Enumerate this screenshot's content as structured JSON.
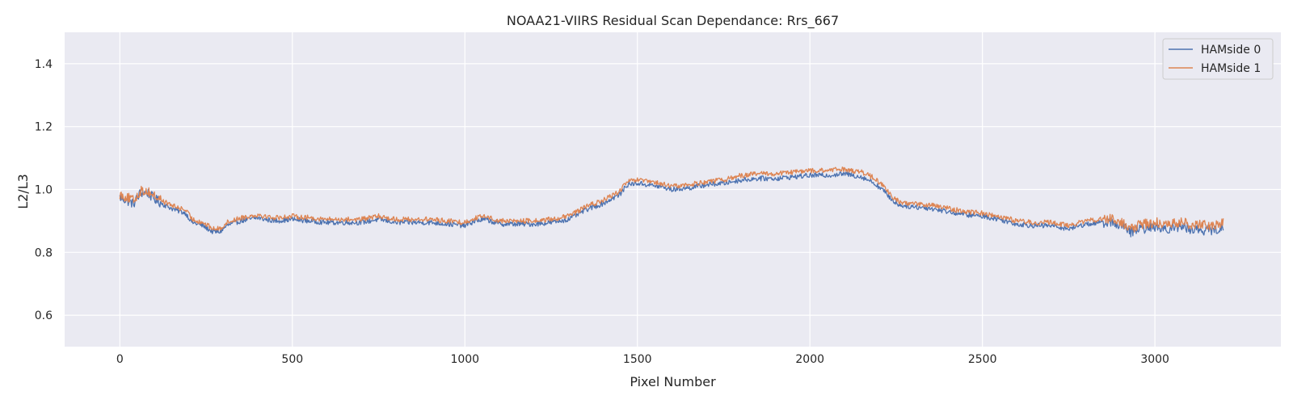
{
  "chart_data": {
    "type": "line",
    "title": "NOAA21-VIIRS Residual Scan Dependance: Rrs_667",
    "xlabel": "Pixel Number",
    "ylabel": "L2/L3",
    "xlim": [
      -160,
      3365
    ],
    "ylim": [
      0.5,
      1.5
    ],
    "xticks": [
      0,
      500,
      1000,
      1500,
      2000,
      2500,
      3000
    ],
    "yticks": [
      0.6,
      0.8,
      1.0,
      1.2,
      1.4
    ],
    "xtick_labels": [
      "0",
      "500",
      "1000",
      "1500",
      "2000",
      "2500",
      "3000"
    ],
    "ytick_labels": [
      "0.6",
      "0.8",
      "1.0",
      "1.2",
      "1.4"
    ],
    "grid": true,
    "legend_position": "top-right",
    "x_range": [
      0,
      3199
    ],
    "series": [
      {
        "name": "HAMside 0",
        "color": "#4c72b0",
        "x": [
          0,
          20,
          40,
          60,
          80,
          100,
          130,
          160,
          190,
          210,
          240,
          270,
          290,
          310,
          350,
          400,
          420,
          450,
          500,
          550,
          600,
          650,
          700,
          750,
          800,
          850,
          900,
          950,
          1000,
          1030,
          1060,
          1100,
          1150,
          1200,
          1250,
          1300,
          1350,
          1400,
          1450,
          1470,
          1500,
          1530,
          1560,
          1600,
          1650,
          1700,
          1750,
          1800,
          1850,
          1900,
          1950,
          2000,
          2050,
          2100,
          2150,
          2180,
          2210,
          2240,
          2260,
          2300,
          2350,
          2400,
          2450,
          2500,
          2550,
          2600,
          2650,
          2700,
          2750,
          2800,
          2850,
          2880,
          2900,
          2930,
          2960,
          3000,
          3050,
          3080,
          3100,
          3150,
          3199
        ],
        "values": [
          0.975,
          0.965,
          0.955,
          0.99,
          0.99,
          0.97,
          0.95,
          0.935,
          0.925,
          0.895,
          0.885,
          0.865,
          0.865,
          0.885,
          0.9,
          0.91,
          0.905,
          0.9,
          0.905,
          0.9,
          0.895,
          0.895,
          0.895,
          0.905,
          0.895,
          0.895,
          0.895,
          0.89,
          0.885,
          0.9,
          0.905,
          0.89,
          0.89,
          0.89,
          0.895,
          0.905,
          0.935,
          0.955,
          0.985,
          1.015,
          1.02,
          1.015,
          1.01,
          1.0,
          1.005,
          1.015,
          1.02,
          1.03,
          1.035,
          1.035,
          1.04,
          1.045,
          1.045,
          1.05,
          1.04,
          1.025,
          1.0,
          0.965,
          0.95,
          0.945,
          0.94,
          0.93,
          0.92,
          0.915,
          0.905,
          0.89,
          0.885,
          0.885,
          0.875,
          0.89,
          0.895,
          0.895,
          0.885,
          0.865,
          0.875,
          0.88,
          0.875,
          0.885,
          0.875,
          0.87,
          0.875
        ]
      },
      {
        "name": "HAMside 1",
        "color": "#dd8452",
        "x": [
          0,
          20,
          40,
          60,
          80,
          100,
          130,
          160,
          190,
          210,
          240,
          270,
          290,
          310,
          350,
          400,
          420,
          450,
          500,
          550,
          600,
          650,
          700,
          750,
          800,
          850,
          900,
          950,
          1000,
          1030,
          1060,
          1100,
          1150,
          1200,
          1250,
          1300,
          1350,
          1400,
          1450,
          1470,
          1500,
          1530,
          1560,
          1600,
          1650,
          1700,
          1750,
          1800,
          1850,
          1900,
          1950,
          2000,
          2050,
          2100,
          2150,
          2180,
          2210,
          2240,
          2260,
          2300,
          2350,
          2400,
          2450,
          2500,
          2550,
          2600,
          2650,
          2700,
          2750,
          2800,
          2850,
          2880,
          2900,
          2930,
          2960,
          3000,
          3050,
          3080,
          3100,
          3150,
          3199
        ],
        "values": [
          0.985,
          0.975,
          0.965,
          0.995,
          0.995,
          0.98,
          0.96,
          0.945,
          0.935,
          0.905,
          0.895,
          0.875,
          0.875,
          0.895,
          0.91,
          0.92,
          0.915,
          0.91,
          0.915,
          0.91,
          0.905,
          0.905,
          0.905,
          0.915,
          0.905,
          0.905,
          0.905,
          0.9,
          0.895,
          0.91,
          0.915,
          0.9,
          0.9,
          0.9,
          0.905,
          0.915,
          0.945,
          0.965,
          0.995,
          1.025,
          1.03,
          1.025,
          1.02,
          1.01,
          1.015,
          1.025,
          1.03,
          1.045,
          1.05,
          1.05,
          1.055,
          1.06,
          1.06,
          1.065,
          1.055,
          1.04,
          1.015,
          0.975,
          0.96,
          0.955,
          0.95,
          0.94,
          0.93,
          0.925,
          0.915,
          0.9,
          0.895,
          0.895,
          0.885,
          0.9,
          0.905,
          0.905,
          0.895,
          0.875,
          0.89,
          0.895,
          0.89,
          0.9,
          0.89,
          0.885,
          0.895
        ]
      }
    ]
  }
}
